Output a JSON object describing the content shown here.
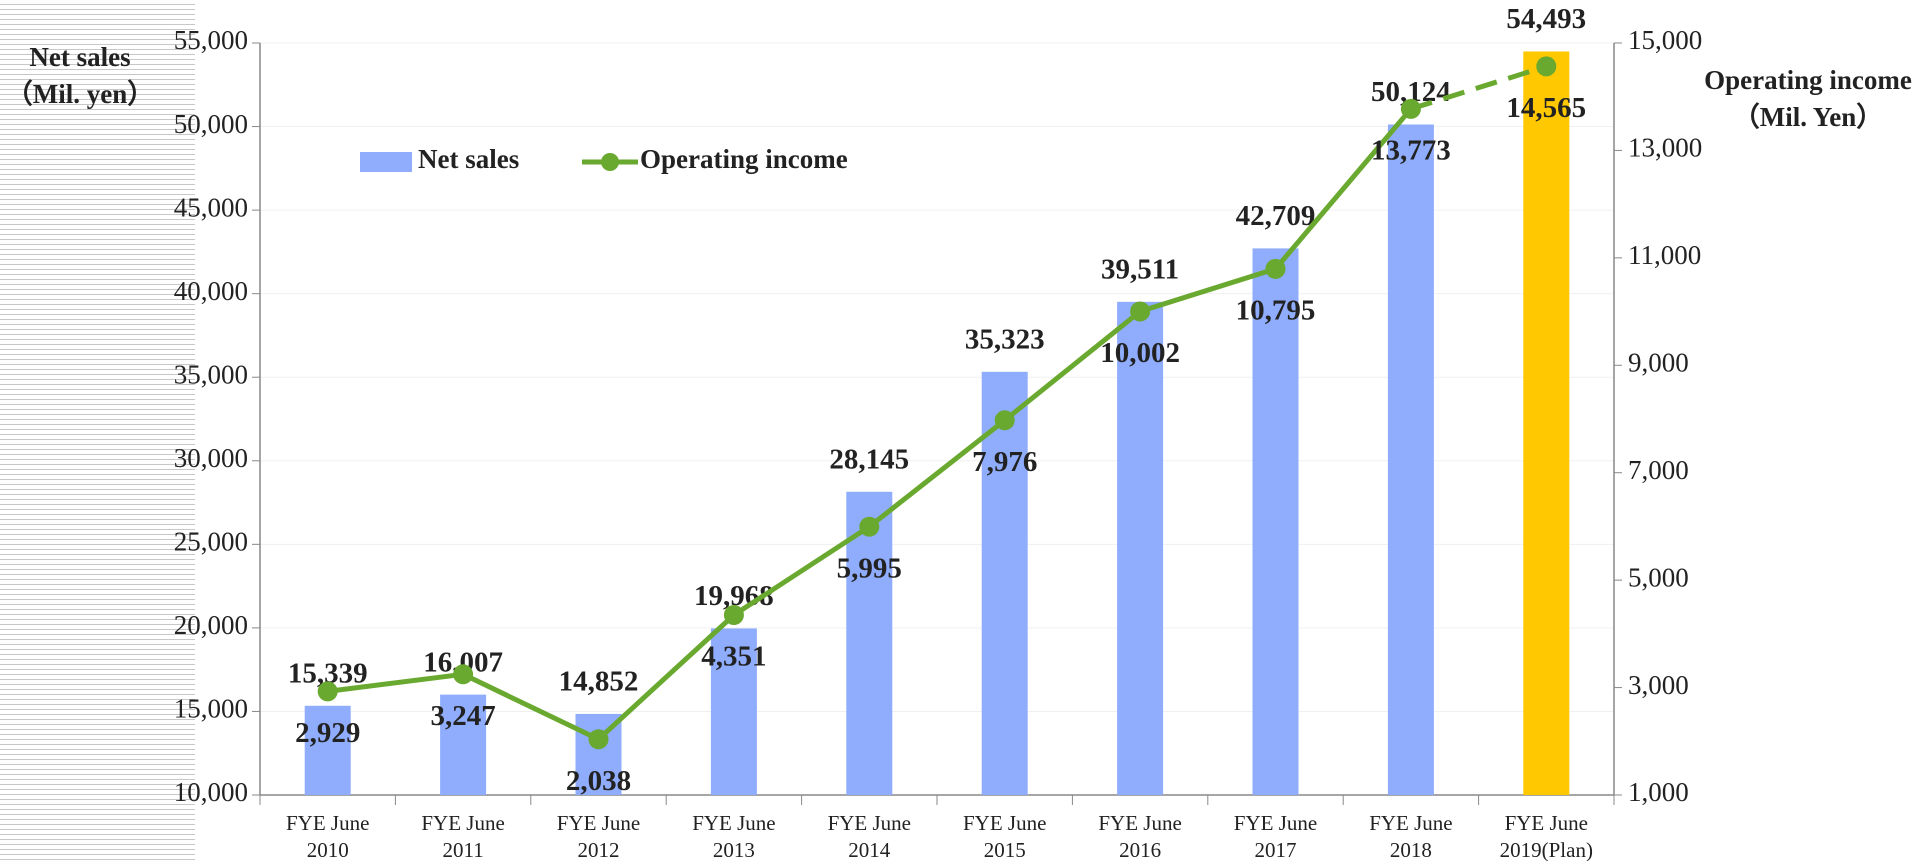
{
  "chart_data": {
    "type": "bar_line",
    "y_label": [
      "Net sales",
      "（Mil. yen）"
    ],
    "y2_label": [
      "Operating income",
      "（Mil. Yen）"
    ],
    "categories": [
      [
        "FYE June",
        "2010"
      ],
      [
        "FYE June",
        "2011"
      ],
      [
        "FYE June",
        "2012"
      ],
      [
        "FYE June",
        "2013"
      ],
      [
        "FYE June",
        "2014"
      ],
      [
        "FYE June",
        "2015"
      ],
      [
        "FYE June",
        "2016"
      ],
      [
        "FYE June",
        "2017"
      ],
      [
        "FYE June",
        "2018"
      ],
      [
        "FYE June",
        "2019(Plan)"
      ]
    ],
    "series": [
      {
        "name": "Net sales",
        "kind": "bar",
        "color": "#8fadfc",
        "point_colors": [
          "#8fadfc",
          "#8fadfc",
          "#8fadfc",
          "#8fadfc",
          "#8fadfc",
          "#8fadfc",
          "#8fadfc",
          "#8fadfc",
          "#8fadfc",
          "#ffc800"
        ],
        "values": [
          15339,
          16007,
          14852,
          19968,
          28145,
          35323,
          39511,
          42709,
          50124,
          54493
        ],
        "value_labels": [
          "15,339",
          "16,007",
          "14,852",
          "19,968",
          "28,145",
          "35,323",
          "39,511",
          "42,709",
          "50,124",
          "54,493"
        ]
      },
      {
        "name": "Operating income",
        "kind": "line",
        "axis": "y2",
        "color": "#6aa92f",
        "dashed_segments": [
          8
        ],
        "values": [
          2929,
          3247,
          2038,
          4351,
          5995,
          7976,
          10002,
          10795,
          13773,
          14565
        ],
        "value_labels": [
          "2,929",
          "3,247",
          "2,038",
          "4,351",
          "5,995",
          "7,976",
          "10,002",
          "10,795",
          "13,773",
          "14,565"
        ]
      }
    ],
    "ylim": [
      10000,
      55000
    ],
    "yticks": [
      {
        "value": 10000,
        "label": "10,000"
      },
      {
        "value": 15000,
        "label": "15,000"
      },
      {
        "value": 20000,
        "label": "20,000"
      },
      {
        "value": 25000,
        "label": "25,000"
      },
      {
        "value": 30000,
        "label": "30,000"
      },
      {
        "value": 35000,
        "label": "35,000"
      },
      {
        "value": 40000,
        "label": "40,000"
      },
      {
        "value": 45000,
        "label": "45,000"
      },
      {
        "value": 50000,
        "label": "50,000"
      },
      {
        "value": 55000,
        "label": "55,000"
      }
    ],
    "y2lim": [
      1000,
      15000
    ],
    "y2ticks": [
      {
        "value": 1000,
        "label": "1,000"
      },
      {
        "value": 3000,
        "label": "3,000"
      },
      {
        "value": 5000,
        "label": "5,000"
      },
      {
        "value": 7000,
        "label": "7,000"
      },
      {
        "value": 9000,
        "label": "9,000"
      },
      {
        "value": 11000,
        "label": "11,000"
      },
      {
        "value": 13000,
        "label": "13,000"
      },
      {
        "value": 15000,
        "label": "15,000"
      }
    ],
    "grid": true,
    "legend": "upper left"
  }
}
